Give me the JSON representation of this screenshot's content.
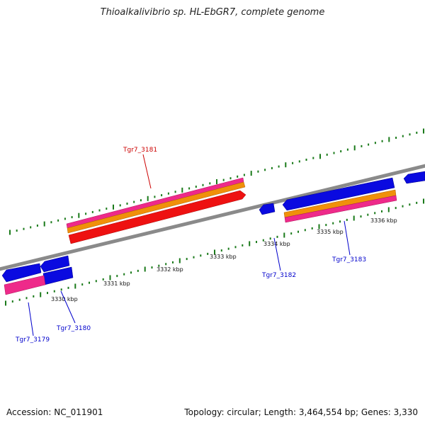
{
  "title": "Thioalkalivibrio sp. HL-EbGR7, complete genome",
  "footer": {
    "accession": "Accession: NC_011901",
    "summary": "Topology: circular; Length: 3,464,554 bp; Genes: 3,330"
  },
  "colors": {
    "backbone": "#8a8a8a",
    "tick": "#1a7a1a",
    "gene_blue": "#0a0ae0",
    "gene_red": "#ee1111",
    "gene_pink": "#ee2a8a",
    "gene_orange": "#f0900a",
    "label_blue": "#0000cc",
    "label_red": "#cc0000"
  },
  "scale_labels": [
    "3330 kbp",
    "3331 kbp",
    "3332 kbp",
    "3333 kbp",
    "3334 kbp",
    "3335 kbp",
    "3336 kbp"
  ],
  "gene_labels": [
    {
      "text": "Tgr7_3179",
      "color": "blue"
    },
    {
      "text": "Tgr7_3180",
      "color": "blue"
    },
    {
      "text": "Tgr7_3181",
      "color": "red"
    },
    {
      "text": "Tgr7_3182",
      "color": "blue"
    },
    {
      "text": "Tgr7_3183",
      "color": "blue"
    }
  ]
}
